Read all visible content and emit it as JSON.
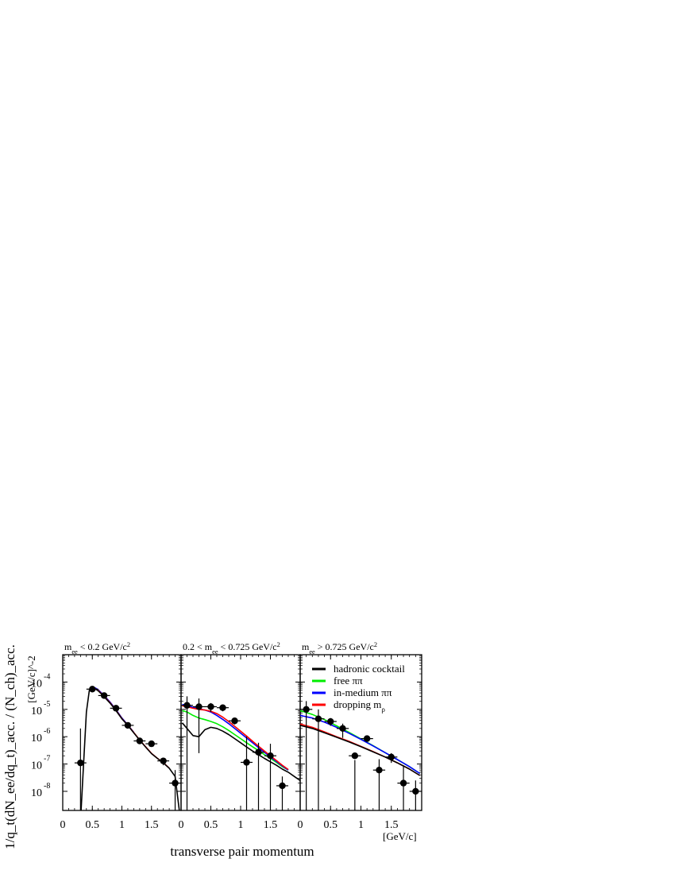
{
  "figure": {
    "ylabel": "1/q_t(dN_ee/dq_t)_acc. / (N_ch)_acc.",
    "yunit": "[GeV/c]^-2",
    "xlabel": "transverse pair momentum",
    "xunit": "[GeV/c]"
  },
  "colors": {
    "hadronic_cocktail": "#000000",
    "free_pipi": "#00ee00",
    "inmedium_pipi": "#0000ff",
    "dropping_mrho": "#ff0000"
  },
  "legend": [
    {
      "label": "hadronic cocktail",
      "color": "#000000"
    },
    {
      "label": "free ππ",
      "color": "#00ee00"
    },
    {
      "label": "in-medium ππ",
      "color": "#0000ff"
    },
    {
      "label": "dropping m_ρ",
      "color": "#ff0000"
    }
  ],
  "chart_data": [
    {
      "type": "line",
      "title": "m_ee < 0.2 GeV/c^2",
      "xlim": [
        0,
        2
      ],
      "ylim": [
        2e-09,
        0.001
      ],
      "yscale": "log",
      "xticks": [
        "0",
        "0.5",
        "1",
        "1.5"
      ],
      "xtick_values": [
        0,
        0.5,
        1,
        1.5
      ],
      "ytick_exponents": [
        "-4",
        "-5",
        "-6",
        "-7",
        "-8"
      ],
      "ytick_values": [
        0.0001,
        1e-05,
        1e-06,
        1e-07,
        1e-08
      ],
      "points": [
        {
          "x": 0.3,
          "y": 1.1e-07,
          "ylo": 1e-09,
          "yhi": 2e-06
        },
        {
          "x": 0.5,
          "y": 5.5e-05,
          "ylo": 5e-05,
          "yhi": 6e-05
        },
        {
          "x": 0.7,
          "y": 3.2e-05,
          "ylo": 2.8e-05,
          "yhi": 3.6e-05
        },
        {
          "x": 0.9,
          "y": 1.1e-05,
          "ylo": 9.5e-06,
          "yhi": 1.25e-05
        },
        {
          "x": 1.1,
          "y": 2.6e-06,
          "ylo": 2.2e-06,
          "yhi": 3e-06
        },
        {
          "x": 1.3,
          "y": 7e-07,
          "ylo": 5.5e-07,
          "yhi": 8.5e-07
        },
        {
          "x": 1.5,
          "y": 5.5e-07,
          "ylo": 4.5e-07,
          "yhi": 6.5e-07
        },
        {
          "x": 1.7,
          "y": 1.3e-07,
          "ylo": 9e-08,
          "yhi": 1.7e-07
        },
        {
          "x": 1.9,
          "y": 2e-08,
          "ylo": 2e-09,
          "yhi": 6e-08
        }
      ],
      "series": [
        {
          "name": "hadronic cocktail",
          "x": [
            0.31,
            0.36,
            0.4,
            0.45,
            0.5,
            0.55,
            0.6,
            0.7,
            0.8,
            0.9,
            1.0,
            1.1,
            1.2,
            1.3,
            1.4,
            1.5,
            1.6,
            1.7,
            1.8,
            1.9,
            1.97
          ],
          "y": [
            2e-09,
            2e-07,
            8e-06,
            5e-05,
            5.8e-05,
            5.6e-05,
            4.8e-05,
            2.9e-05,
            1.7e-05,
            9e-06,
            4.5e-06,
            2.6e-06,
            1.4e-06,
            7.5e-07,
            4.2e-07,
            2.4e-07,
            1.6e-07,
            1.1e-07,
            7e-08,
            3.5e-08,
            2e-09
          ]
        },
        {
          "name": "free ππ",
          "x": [
            0.45,
            0.5,
            0.55,
            0.6,
            0.7,
            0.8,
            0.9,
            1.0
          ],
          "y": [
            5.2e-05,
            6e-05,
            5.9e-05,
            5.1e-05,
            3.1e-05,
            1.8e-05,
            9.5e-06,
            4.7e-06
          ]
        },
        {
          "name": "in-medium ππ",
          "x": [
            0.45,
            0.5,
            0.55,
            0.6,
            0.7,
            0.8,
            0.9,
            1.0,
            1.1,
            1.2
          ],
          "y": [
            5.3e-05,
            6.2e-05,
            6.1e-05,
            5.2e-05,
            3.2e-05,
            1.85e-05,
            9.7e-06,
            4.8e-06,
            2.7e-06,
            1.45e-06
          ]
        },
        {
          "name": "dropping m_ρ",
          "x": [
            0.45,
            0.5,
            0.55,
            0.6,
            0.7,
            0.8,
            0.9,
            1.0,
            1.1,
            1.2,
            1.3,
            1.4,
            1.5,
            1.6,
            1.7,
            1.8
          ],
          "y": [
            5.1e-05,
            5.9e-05,
            5.7e-05,
            4.9e-05,
            3e-05,
            1.75e-05,
            9.2e-06,
            4.6e-06,
            2.65e-06,
            1.42e-06,
            7.6e-07,
            4.3e-07,
            2.45e-07,
            1.62e-07,
            1.12e-07,
            7.1e-08
          ]
        }
      ]
    },
    {
      "type": "line",
      "title": "0.2 < m_ee < 0.725 GeV/c^2",
      "xlim": [
        0,
        2
      ],
      "ylim": [
        2e-09,
        0.001
      ],
      "yscale": "log",
      "xticks": [
        "0",
        "0.5",
        "1",
        "1.5"
      ],
      "xtick_values": [
        0,
        0.5,
        1,
        1.5
      ],
      "points": [
        {
          "x": 0.1,
          "y": 1.4e-05,
          "ylo": 2e-09,
          "yhi": 3e-05
        },
        {
          "x": 0.3,
          "y": 1.25e-05,
          "ylo": 2.5e-07,
          "yhi": 2.5e-05
        },
        {
          "x": 0.5,
          "y": 1.25e-05,
          "ylo": 8e-06,
          "yhi": 1.7e-05
        },
        {
          "x": 0.7,
          "y": 1.15e-05,
          "ylo": 8.5e-06,
          "yhi": 1.5e-05
        },
        {
          "x": 0.9,
          "y": 3.8e-06,
          "ylo": 2.8e-06,
          "yhi": 4.8e-06
        },
        {
          "x": 1.1,
          "y": 1.15e-07,
          "ylo": 2e-09,
          "yhi": 1e-06
        },
        {
          "x": 1.3,
          "y": 2.7e-07,
          "ylo": 2e-09,
          "yhi": 6e-07
        },
        {
          "x": 1.5,
          "y": 2e-07,
          "ylo": 2e-09,
          "yhi": 5.5e-07
        },
        {
          "x": 1.7,
          "y": 1.6e-08,
          "ylo": 2e-09,
          "yhi": 3.5e-08
        }
      ],
      "series": [
        {
          "name": "hadronic cocktail",
          "x": [
            0.02,
            0.1,
            0.2,
            0.3,
            0.4,
            0.5,
            0.6,
            0.7,
            0.8,
            0.9,
            1.0,
            1.1,
            1.2,
            1.3,
            1.4,
            1.5,
            1.6,
            1.7,
            1.8,
            1.9,
            2.0
          ],
          "y": [
            3.2e-06,
            2e-06,
            1.1e-06,
            1e-06,
            1.8e-06,
            2.2e-06,
            2e-06,
            1.6e-06,
            1.2e-06,
            8.5e-07,
            6e-07,
            4.2e-07,
            3e-07,
            2.2e-07,
            1.6e-07,
            1.2e-07,
            9e-08,
            6.5e-08,
            5e-08,
            3.5e-08,
            2.5e-08
          ]
        },
        {
          "name": "free ππ",
          "x": [
            0.02,
            0.1,
            0.2,
            0.3,
            0.4,
            0.5,
            0.6,
            0.7,
            0.8,
            0.9,
            1.0,
            1.1,
            1.2,
            1.3,
            1.4,
            1.5,
            1.6,
            1.7,
            1.8
          ],
          "y": [
            9e-06,
            8e-06,
            6e-06,
            4.8e-06,
            4.2e-06,
            3.6e-06,
            3e-06,
            2.3e-06,
            1.7e-06,
            1.2e-06,
            8.5e-07,
            6e-07,
            4.3e-07,
            3.1e-07,
            2.2e-07,
            1.6e-07,
            1.15e-07,
            8e-08,
            6e-08
          ]
        },
        {
          "name": "in-medium ππ",
          "x": [
            0.02,
            0.1,
            0.2,
            0.3,
            0.4,
            0.5,
            0.6,
            0.7,
            0.8,
            0.9,
            1.0,
            1.1,
            1.2,
            1.3,
            1.4,
            1.5,
            1.6,
            1.7,
            1.8
          ],
          "y": [
            1.5e-05,
            1.4e-05,
            1.2e-05,
            1.05e-05,
            9.5e-06,
            8e-06,
            6e-06,
            4.3e-06,
            3e-06,
            2e-06,
            1.35e-06,
            9e-07,
            6e-07,
            4e-07,
            2.7e-07,
            1.8e-07,
            1.25e-07,
            8.5e-08,
            6e-08
          ]
        },
        {
          "name": "dropping m_ρ",
          "x": [
            0.02,
            0.1,
            0.2,
            0.3,
            0.4,
            0.5,
            0.6,
            0.7,
            0.8,
            0.9,
            1.0,
            1.1,
            1.2,
            1.3,
            1.4,
            1.5,
            1.6,
            1.7,
            1.8
          ],
          "y": [
            1.35e-05,
            1.25e-05,
            1.1e-05,
            1e-05,
            9.5e-06,
            8.5e-06,
            7e-06,
            5.2e-06,
            3.6e-06,
            2.4e-06,
            1.6e-06,
            1.05e-06,
            6.8e-07,
            4.5e-07,
            3e-07,
            2e-07,
            1.35e-07,
            9e-08,
            6.3e-08
          ]
        }
      ]
    },
    {
      "type": "line",
      "title": "m_ee > 0.725 GeV/c^2",
      "xlim": [
        0,
        2
      ],
      "ylim": [
        2e-09,
        0.001
      ],
      "yscale": "log",
      "xticks": [
        "0",
        "0.5",
        "1",
        "1.5"
      ],
      "xtick_values": [
        0,
        0.5,
        1,
        1.5
      ],
      "points": [
        {
          "x": 0.1,
          "y": 1e-05,
          "ylo": 2e-09,
          "yhi": 2e-05
        },
        {
          "x": 0.3,
          "y": 4.5e-06,
          "ylo": 2e-09,
          "yhi": 1e-05
        },
        {
          "x": 0.5,
          "y": 3.6e-06,
          "ylo": 2.5e-06,
          "yhi": 4.8e-06
        },
        {
          "x": 0.7,
          "y": 2e-06,
          "ylo": 9e-07,
          "yhi": 3e-06
        },
        {
          "x": 0.9,
          "y": 2e-07,
          "ylo": 2e-09,
          "yhi": 1.4e-07
        },
        {
          "x": 1.1,
          "y": 8.5e-07,
          "ylo": 6.5e-07,
          "yhi": 1.05e-06
        },
        {
          "x": 1.3,
          "y": 6e-08,
          "ylo": 2e-09,
          "yhi": 1.5e-07
        },
        {
          "x": 1.5,
          "y": 1.8e-07,
          "ylo": 1.1e-07,
          "yhi": 2.5e-07
        },
        {
          "x": 1.7,
          "y": 2e-08,
          "ylo": 2e-09,
          "yhi": 9e-08
        },
        {
          "x": 1.9,
          "y": 1e-08,
          "ylo": 2e-09,
          "yhi": 2.5e-08
        }
      ],
      "series": [
        {
          "name": "hadronic cocktail",
          "x": [
            0.0,
            0.2,
            0.4,
            0.6,
            0.8,
            1.0,
            1.2,
            1.4,
            1.6,
            1.8,
            1.97
          ],
          "y": [
            2.6e-06,
            2e-06,
            1.4e-06,
            9.5e-07,
            6.5e-07,
            4.3e-07,
            2.8e-07,
            1.8e-07,
            1.1e-07,
            6.5e-08,
            3.8e-08
          ]
        },
        {
          "name": "free ππ",
          "x": [
            0.0,
            0.2,
            0.4,
            0.6,
            0.8,
            1.0,
            1.2,
            1.4,
            1.6,
            1.8,
            1.97
          ],
          "y": [
            9e-06,
            6.5e-06,
            4.2e-06,
            2.5e-06,
            1.45e-06,
            8.3e-07,
            4.7e-07,
            2.6e-07,
            1.45e-07,
            8e-08,
            4.5e-08
          ]
        },
        {
          "name": "in-medium ππ",
          "x": [
            0.0,
            0.2,
            0.4,
            0.6,
            0.8,
            1.0,
            1.2,
            1.4,
            1.6,
            1.8,
            1.97
          ],
          "y": [
            6e-06,
            4.8e-06,
            3.4e-06,
            2.2e-06,
            1.35e-06,
            8e-07,
            4.6e-07,
            2.6e-07,
            1.45e-07,
            8e-08,
            4.5e-08
          ]
        },
        {
          "name": "dropping m_ρ",
          "x": [
            0.0,
            0.2,
            0.4,
            0.6,
            0.8,
            1.0,
            1.2,
            1.4,
            1.6,
            1.8,
            1.97
          ],
          "y": [
            2.9e-06,
            2.2e-06,
            1.5e-06,
            1e-06,
            6.8e-07,
            4.4e-07,
            2.85e-07,
            1.8e-07,
            1.1e-07,
            6.5e-08,
            3.8e-08
          ]
        }
      ]
    }
  ]
}
